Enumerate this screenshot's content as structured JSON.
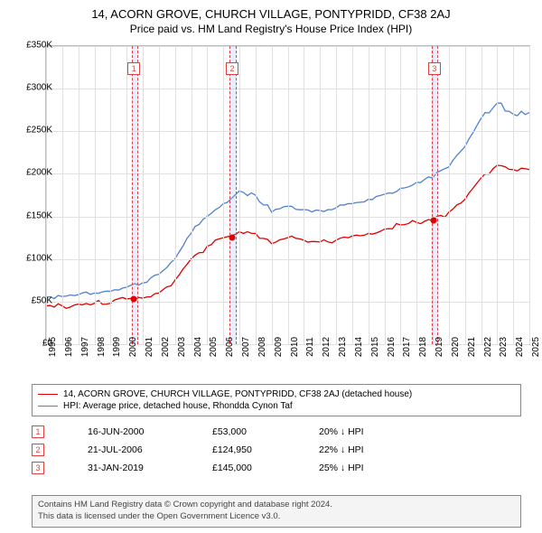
{
  "title": "14, ACORN GROVE, CHURCH VILLAGE, PONTYPRIDD, CF38 2AJ",
  "subtitle": "Price paid vs. HM Land Registry's House Price Index (HPI)",
  "chart": {
    "type": "line",
    "xlim": [
      1995,
      2025
    ],
    "ylim": [
      0,
      350000
    ],
    "ytick_step": 50000,
    "y_prefix": "£",
    "background_color": "#ffffff",
    "grid_color": "#e0e0e0",
    "line_width": 1.3,
    "series": [
      {
        "id": "property",
        "color": "#e00000",
        "label": "14, ACORN GROVE, CHURCH VILLAGE, PONTYPRIDD, CF38 2AJ (detached house)",
        "data": [
          [
            1995,
            45000
          ],
          [
            1996,
            45000
          ],
          [
            1997,
            47000
          ],
          [
            1998,
            48000
          ],
          [
            1999,
            48000
          ],
          [
            2000,
            53000
          ],
          [
            2001,
            54000
          ],
          [
            2002,
            60000
          ],
          [
            2003,
            75000
          ],
          [
            2004,
            100000
          ],
          [
            2005,
            115000
          ],
          [
            2006,
            124950
          ],
          [
            2007,
            132000
          ],
          [
            2008,
            130000
          ],
          [
            2009,
            118000
          ],
          [
            2010,
            125000
          ],
          [
            2011,
            122000
          ],
          [
            2012,
            120000
          ],
          [
            2013,
            122000
          ],
          [
            2014,
            127000
          ],
          [
            2015,
            130000
          ],
          [
            2016,
            135000
          ],
          [
            2017,
            140000
          ],
          [
            2018,
            143000
          ],
          [
            2019,
            145000
          ],
          [
            2020,
            155000
          ],
          [
            2021,
            170000
          ],
          [
            2022,
            195000
          ],
          [
            2023,
            210000
          ],
          [
            2024,
            205000
          ],
          [
            2025,
            205000
          ]
        ]
      },
      {
        "id": "hpi",
        "color": "#5080d0",
        "label": "HPI: Average price, detached house, Rhondda Cynon Taf",
        "data": [
          [
            1995,
            55000
          ],
          [
            1996,
            56000
          ],
          [
            1997,
            58000
          ],
          [
            1998,
            60000
          ],
          [
            1999,
            62000
          ],
          [
            2000,
            67000
          ],
          [
            2001,
            72000
          ],
          [
            2002,
            82000
          ],
          [
            2003,
            100000
          ],
          [
            2004,
            130000
          ],
          [
            2005,
            150000
          ],
          [
            2006,
            165000
          ],
          [
            2007,
            180000
          ],
          [
            2008,
            175000
          ],
          [
            2009,
            155000
          ],
          [
            2010,
            162000
          ],
          [
            2011,
            158000
          ],
          [
            2012,
            157000
          ],
          [
            2013,
            160000
          ],
          [
            2014,
            165000
          ],
          [
            2015,
            170000
          ],
          [
            2016,
            176000
          ],
          [
            2017,
            183000
          ],
          [
            2018,
            190000
          ],
          [
            2019,
            195000
          ],
          [
            2020,
            208000
          ],
          [
            2021,
            232000
          ],
          [
            2022,
            265000
          ],
          [
            2023,
            283000
          ],
          [
            2024,
            270000
          ],
          [
            2025,
            272000
          ]
        ]
      }
    ],
    "point_markers": [
      {
        "year": 2000.46,
        "value": 53000,
        "color": "#e00000"
      },
      {
        "year": 2006.56,
        "value": 124950,
        "color": "#e00000"
      },
      {
        "year": 2019.08,
        "value": 145000,
        "color": "#e00000"
      }
    ],
    "event_bands": [
      {
        "num": "1",
        "start": 2000.3,
        "end": 2000.6
      },
      {
        "num": "2",
        "start": 2006.4,
        "end": 2006.7
      },
      {
        "num": "3",
        "start": 2018.95,
        "end": 2019.25
      }
    ]
  },
  "legend": {
    "items": [
      {
        "color": "#e00000",
        "text": "14, ACORN GROVE, CHURCH VILLAGE, PONTYPRIDD, CF38 2AJ (detached house)"
      },
      {
        "color": "#5080d0",
        "text": "HPI: Average price, detached house, Rhondda Cynon Taf"
      }
    ]
  },
  "sales": [
    {
      "num": "1",
      "date": "16-JUN-2000",
      "price": "£53,000",
      "delta": "20% ↓ HPI"
    },
    {
      "num": "2",
      "date": "21-JUL-2006",
      "price": "£124,950",
      "delta": "22% ↓ HPI"
    },
    {
      "num": "3",
      "date": "31-JAN-2019",
      "price": "£145,000",
      "delta": "25% ↓ HPI"
    }
  ],
  "footer": {
    "line1": "Contains HM Land Registry data © Crown copyright and database right 2024.",
    "line2": "This data is licensed under the Open Government Licence v3.0."
  }
}
